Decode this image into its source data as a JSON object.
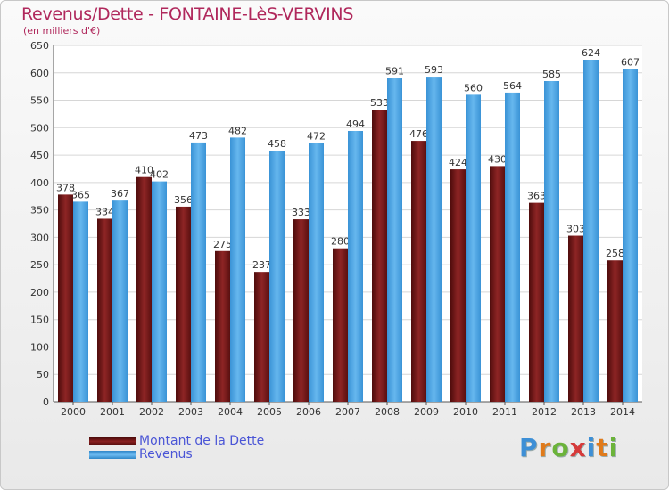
{
  "chart_data": {
    "type": "bar",
    "title": "Revenus/Dette - FONTAINE-LèS-VERVINS",
    "subtitle": "(en milliers d'€)",
    "categories": [
      "2000",
      "2001",
      "2002",
      "2003",
      "2004",
      "2005",
      "2006",
      "2007",
      "2008",
      "2009",
      "2010",
      "2011",
      "2012",
      "2013",
      "2014"
    ],
    "series": [
      {
        "name": "Montant de la Dette",
        "color": "#7a1616",
        "values": [
          378,
          334,
          410,
          356,
          275,
          237,
          333,
          280,
          533,
          476,
          424,
          430,
          363,
          303,
          258
        ]
      },
      {
        "name": "Revenus",
        "color": "#4aa3e6",
        "values": [
          365,
          367,
          402,
          473,
          482,
          458,
          472,
          494,
          591,
          593,
          560,
          564,
          585,
          624,
          607
        ]
      }
    ],
    "ylim": [
      0,
      650
    ],
    "yticks": [
      0,
      50,
      100,
      150,
      200,
      250,
      300,
      350,
      400,
      450,
      500,
      550,
      600,
      650
    ],
    "grid": true,
    "legend": "bottom-left"
  },
  "legend": {
    "debt_label": "Montant de la Dette",
    "revenue_label": "Revenus"
  },
  "logo": {
    "text": "Proxiti"
  }
}
